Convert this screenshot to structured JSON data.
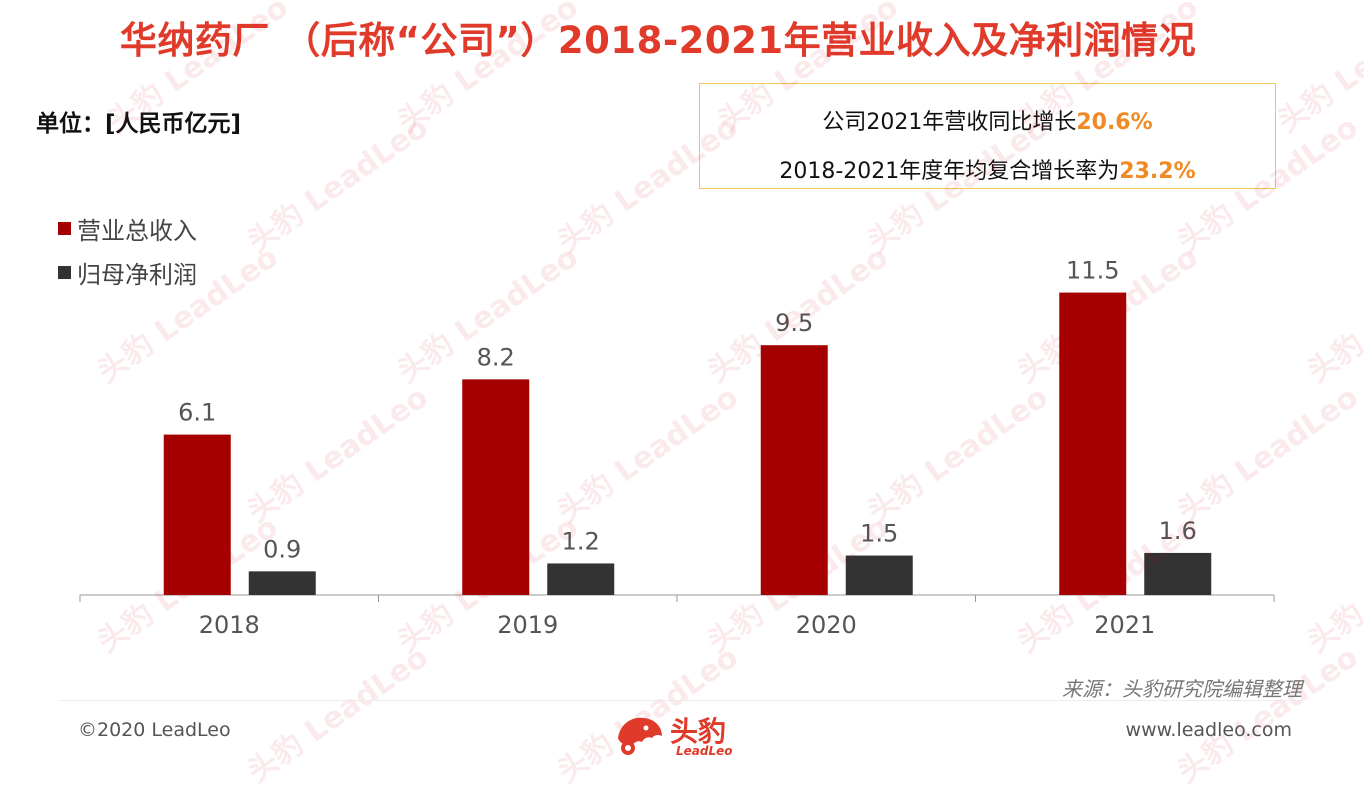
{
  "title": "华纳药厂 （后称“公司”）2018-2021年营业收入及净利润情况",
  "unit_label": "单位：[人民币亿元]",
  "callout": {
    "line1_prefix": "公司2021年营收同比增长",
    "line1_value": "20.6%",
    "line2_prefix": "2018-2021年度年均复合增长率为",
    "line2_value": "23.2%"
  },
  "colors": {
    "title": "#e03b2a",
    "revenue": "#a50000",
    "net_profit": "#333333",
    "highlight": "#f08a24"
  },
  "chart_data": {
    "type": "bar",
    "categories": [
      "2018",
      "2019",
      "2020",
      "2021"
    ],
    "series": [
      {
        "name": "营业总收入",
        "values": [
          6.1,
          8.2,
          9.5,
          11.5
        ]
      },
      {
        "name": "归母净利润",
        "values": [
          0.9,
          1.2,
          1.5,
          1.6
        ]
      }
    ],
    "legend_position": "top-left",
    "grid": false,
    "ylim": [
      0,
      13.5
    ]
  },
  "watermark_text": "头豹 LeadLeo",
  "source": "来源：头豹研究院编辑整理",
  "footer": {
    "copyright": "©2020 LeadLeo",
    "website": "www.leadleo.com",
    "logo_text": "头豹",
    "logo_sub": "LeadLeo"
  }
}
